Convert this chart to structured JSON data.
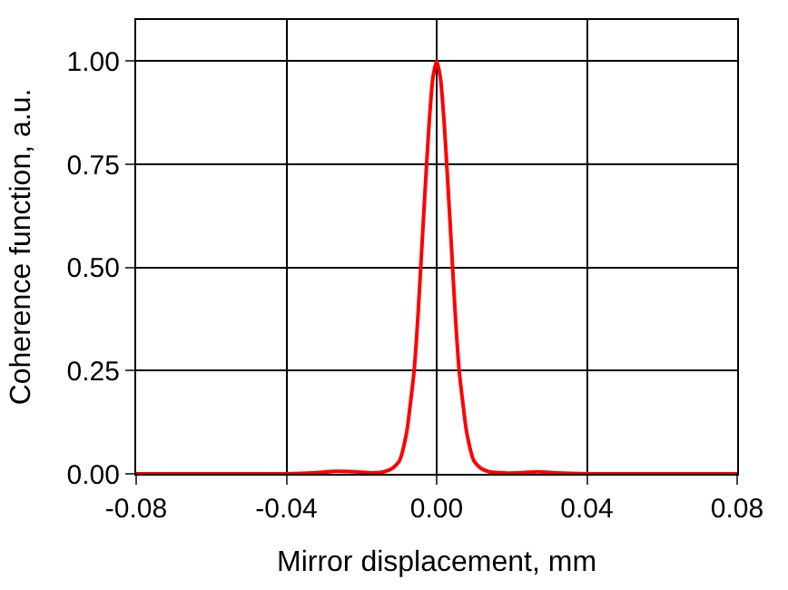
{
  "chart_data": {
    "type": "line",
    "xlabel": "Mirror displacement, mm",
    "ylabel": "Coherence function, a.u.",
    "x": [
      -0.08,
      -0.04,
      -0.033,
      -0.027,
      -0.022,
      -0.017,
      -0.014,
      -0.012,
      -0.01,
      -0.008,
      -0.007,
      -0.006,
      -0.005,
      -0.004,
      -0.003,
      -0.002,
      -0.001,
      0,
      0.001,
      0.002,
      0.003,
      0.004,
      0.005,
      0.006,
      0.007,
      0.008,
      0.01,
      0.012,
      0.014,
      0.018,
      0.023,
      0.027,
      0.032,
      0.04,
      0.08
    ],
    "series": [
      {
        "color": "#ff0000",
        "values": [
          0,
          0,
          0.002,
          0.006,
          0.005,
          0.002,
          0.005,
          0.012,
          0.03,
          0.1,
          0.17,
          0.25,
          0.38,
          0.54,
          0.7,
          0.85,
          0.96,
          1.0,
          0.96,
          0.85,
          0.7,
          0.54,
          0.38,
          0.25,
          0.17,
          0.1,
          0.03,
          0.012,
          0.005,
          0.002,
          0.003,
          0.005,
          0.002,
          0,
          0
        ]
      }
    ],
    "xlim": [
      -0.08,
      0.08
    ],
    "ylim": [
      0,
      1.1
    ],
    "xticks": [
      {
        "value": -0.08,
        "label": "-0.08"
      },
      {
        "value": -0.04,
        "label": "-0.04"
      },
      {
        "value": 0,
        "label": "0.00"
      },
      {
        "value": 0.04,
        "label": "0.04"
      },
      {
        "value": 0.08,
        "label": "0.08"
      }
    ],
    "yticks": [
      {
        "value": 0,
        "label": "0.00"
      },
      {
        "value": 0.25,
        "label": "0.25"
      },
      {
        "value": 0.5,
        "label": "0.50"
      },
      {
        "value": 0.75,
        "label": "0.75"
      },
      {
        "value": 1,
        "label": "1.00"
      }
    ],
    "grid": true,
    "marker": "none",
    "line_style": "solid"
  }
}
